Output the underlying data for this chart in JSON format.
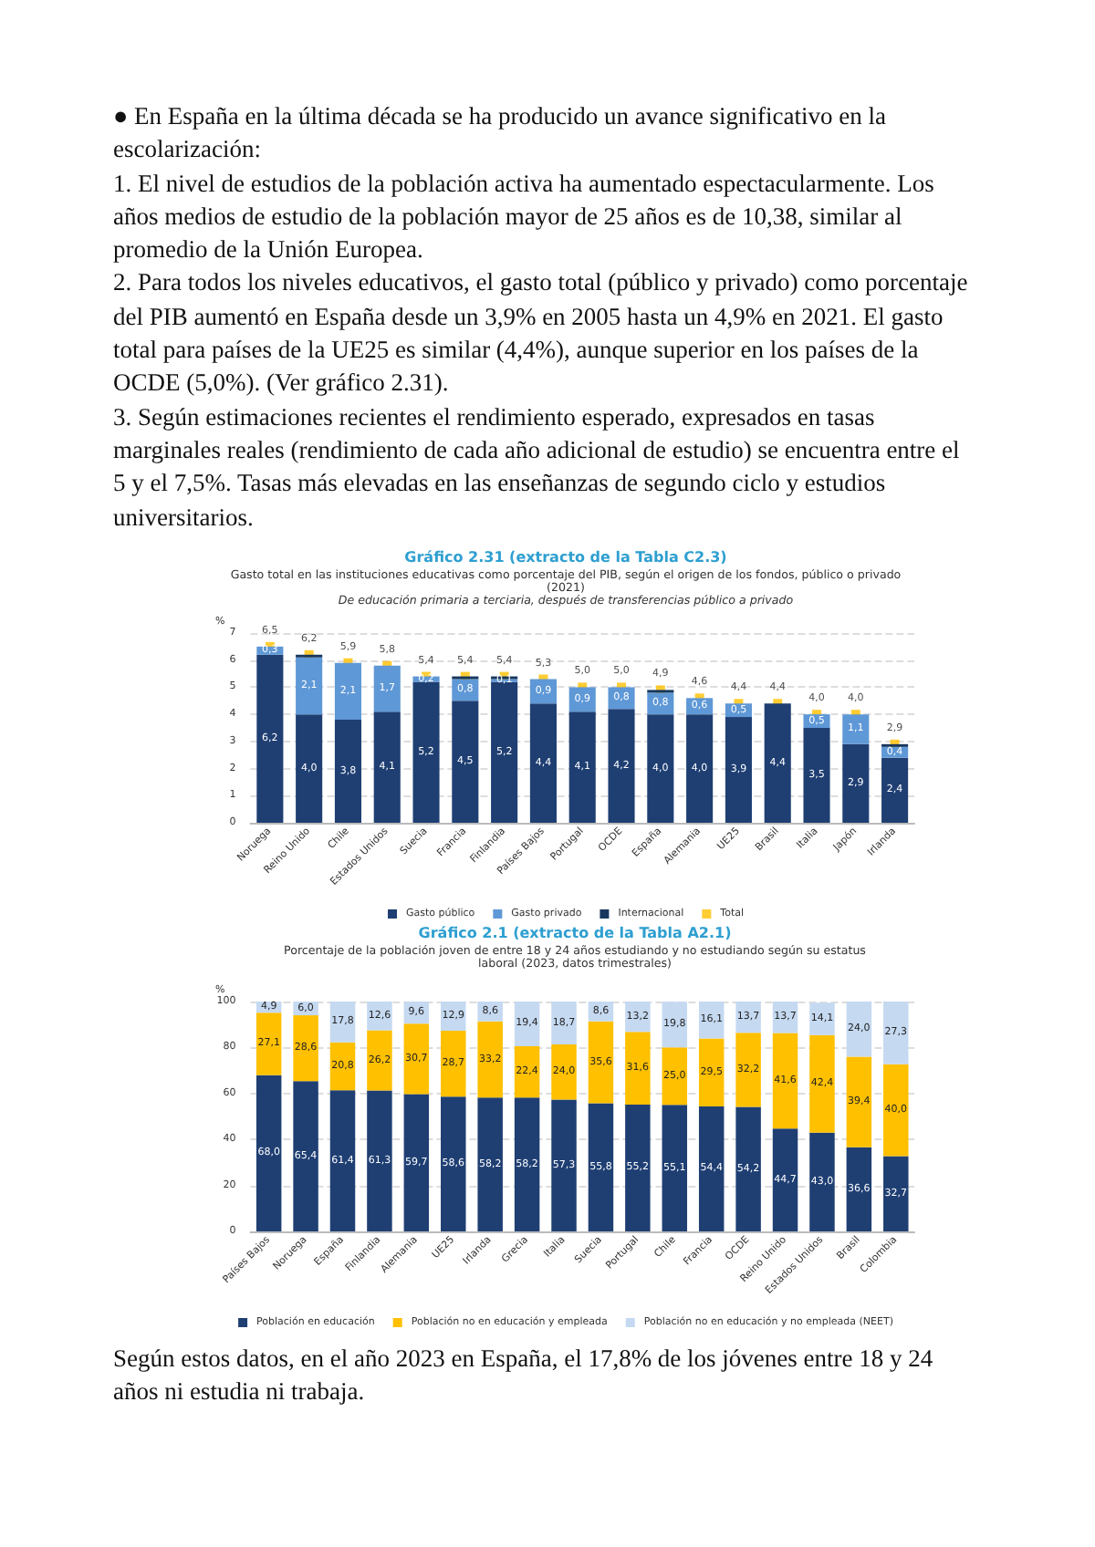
{
  "chart_data": [
    {
      "type": "bar",
      "title": "Gráfico 2.31 (extracto de la Tabla C2.3)",
      "subtitle": "Gasto total en las instituciones educativas como porcentaje del PIB, según el origen de los fondos, público o privado (2021)",
      "annotations": [
        "De educación primaria a terciaria, después de transferencias público a privado",
        "● En España en la última década se ha producido un avance significativo en la escolarización:",
        "1. El nivel de estudios de la población activa ha aumentado espectacularmente. Los años medios de estudio de la población mayor de 25 años es de 10,38, similar al promedio de la Unión Europea.",
        "2. Para todos los niveles educativos, el gasto total (público y privado) como porcentaje del PIB aumentó en España desde un 3,9% en 2005 hasta un 4,9% en 2021. El gasto total para países de la UE25 es similar (4,4%), aunque superior en los países de la OCDE (5,0%). (Ver gráfico 2.31).",
        "3. Según estimaciones recientes el rendimiento esperado, expresados en tasas marginales reales (rendimiento de cada año adicional de estudio) se encuentra entre el 5 y el 7,5%. Tasas más elevadas en las enseñanzas de segundo ciclo y estudios universitarios."
      ],
      "ylabel": "%",
      "categories": [
        "Noruega",
        "Reino Unido",
        "Chile",
        "Estados Unidos",
        "Suecia",
        "Francia",
        "Finlandia",
        "Países Bajos",
        "Portugal",
        "OCDE",
        "España",
        "Alemania",
        "UE25",
        "Brasil",
        "Italia",
        "Japón",
        "Irlanda"
      ],
      "series": [
        {
          "name": "Gasto público",
          "color": "#1f3f73",
          "values": [
            6.2,
            4.0,
            3.8,
            4.1,
            5.2,
            4.5,
            5.2,
            4.4,
            4.1,
            4.2,
            4.0,
            4.0,
            3.9,
            4.4,
            3.5,
            2.9,
            2.4
          ],
          "value_labels": [
            "6,2",
            "4,0",
            "3,8",
            "4,1",
            "5,2",
            "4,5",
            "5,2",
            "4,4",
            "4,1",
            "4,2",
            "4,0",
            "4,0",
            "3,9",
            "4,4",
            "3,5",
            "2,9",
            "2,4"
          ]
        },
        {
          "name": "Gasto privado",
          "color": "#5f98d6",
          "values": [
            0.3,
            2.1,
            2.1,
            1.7,
            0.2,
            0.8,
            0.1,
            0.9,
            0.9,
            0.8,
            0.8,
            0.6,
            0.5,
            null,
            0.5,
            1.1,
            0.4
          ],
          "value_labels": [
            "0,3",
            "2,1",
            "2,1",
            "1,7",
            "0,2",
            "0,8",
            "0,1",
            "0,9",
            "0,9",
            "0,8",
            "0,8",
            "0,6",
            "0,5",
            null,
            "0,5",
            "1,1",
            "0,4"
          ]
        },
        {
          "name": "Internacional",
          "color": "#17375e",
          "values": [
            null,
            0.1,
            null,
            null,
            null,
            0.1,
            0.1,
            null,
            null,
            null,
            0.1,
            null,
            null,
            null,
            null,
            null,
            0.1
          ]
        },
        {
          "name": "Total",
          "type": "scatter",
          "color": "#ffc000",
          "values": [
            6.5,
            6.2,
            5.9,
            5.8,
            5.4,
            5.4,
            5.4,
            5.3,
            5.0,
            5.0,
            4.9,
            4.6,
            4.4,
            4.4,
            4.0,
            4.0,
            2.9
          ],
          "value_labels": [
            "6,5",
            "6,2",
            "5,9",
            "5,8",
            "5,4",
            "5,4",
            "5,4",
            "5,3",
            "5,0",
            "5,0",
            "4,9",
            "4,6",
            "4,4",
            "4,4",
            "4,0",
            "4,0",
            "2,9"
          ]
        }
      ],
      "stacked": true,
      "marker": "square",
      "ylim": [
        0,
        7
      ],
      "yticks": [
        0,
        1,
        2,
        3,
        4,
        5,
        6,
        7
      ],
      "grid": "y",
      "legend": "bottom"
    },
    {
      "type": "bar",
      "title": "Gráfico 2.1 (extracto de la Tabla A2.1)",
      "subtitle": "Porcentaje de la población joven de entre 18 y 24 años estudiando y no estudiando según su estatus laboral (2023, datos trimestrales)",
      "annotations": [
        "Según estos datos, en el año 2023 en España, el 17,8% de los jóvenes entre 18 y 24 años ni estudia ni trabaja."
      ],
      "ylabel": "%",
      "categories": [
        "Países Bajos",
        "Noruega",
        "España",
        "Finlandia",
        "Alemania",
        "UE25",
        "Irlanda",
        "Grecia",
        "Italia",
        "Suecia",
        "Portugal",
        "Chile",
        "Francia",
        "OCDE",
        "Reino Unido",
        "Estados Unidos",
        "Brasil",
        "Colombia"
      ],
      "series": [
        {
          "name": "Población en educación",
          "color": "#1f3f73",
          "values": [
            68.0,
            65.4,
            61.4,
            61.3,
            59.7,
            58.6,
            58.2,
            58.2,
            57.3,
            55.8,
            55.2,
            55.1,
            54.4,
            54.2,
            44.7,
            43.0,
            36.6,
            32.7
          ],
          "value_labels": [
            "68,0",
            "65,4",
            "61,4",
            "61,3",
            "59,7",
            "58,6",
            "58,2",
            "58,2",
            "57,3",
            "55,8",
            "55,2",
            "55,1",
            "54,4",
            "54,2",
            "44,7",
            "43,0",
            "36,6",
            "32,7"
          ]
        },
        {
          "name": "Población no en educación y empleada",
          "color": "#ffc000",
          "values": [
            27.1,
            28.6,
            20.8,
            26.2,
            30.7,
            28.7,
            33.2,
            22.4,
            24.0,
            35.6,
            31.6,
            25.0,
            29.5,
            32.2,
            41.6,
            42.4,
            39.4,
            40.0
          ],
          "value_labels": [
            "27,1",
            "28,6",
            "20,8",
            "26,2",
            "30,7",
            "28,7",
            "33,2",
            "22,4",
            "24,0",
            "35,6",
            "31,6",
            "25,0",
            "29,5",
            "32,2",
            "41,6",
            "42,4",
            "39,4",
            "40,0"
          ]
        },
        {
          "name": "Población no en educación y no empleada (NEET)",
          "color": "#c5d9f1",
          "values": [
            4.9,
            6.0,
            17.8,
            12.6,
            9.6,
            12.9,
            8.6,
            19.4,
            18.7,
            8.6,
            13.2,
            19.8,
            16.1,
            13.7,
            13.7,
            14.1,
            24.0,
            27.3
          ],
          "value_labels": [
            "4,9",
            "6,0",
            "17,8",
            "12,6",
            "9,6",
            "12,9",
            "8,6",
            "19,4",
            "18,7",
            "8,6",
            "13,2",
            "19,8",
            "16,1",
            "13,7",
            "13,7",
            "14,1",
            "24,0",
            "27,3"
          ]
        }
      ],
      "stacked": true,
      "ylim": [
        0,
        100
      ],
      "yticks": [
        0,
        20,
        40,
        60,
        80,
        100
      ],
      "grid": "y",
      "legend": "bottom"
    }
  ]
}
